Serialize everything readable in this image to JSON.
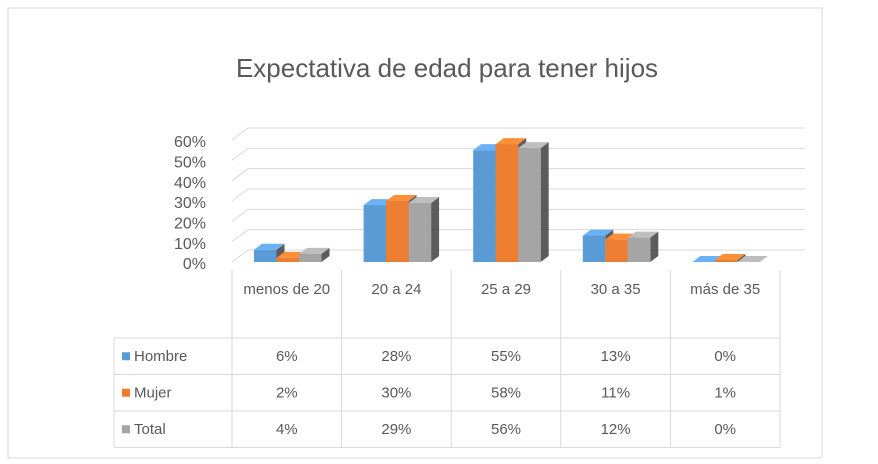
{
  "chart_data": {
    "type": "bar3d",
    "title": "Expectativa de edad para tener hijos",
    "categories": [
      "menos de 20",
      "20 a 24",
      "25 a 29",
      "30 a 35",
      "más de 35"
    ],
    "series": [
      {
        "name": "Hombre",
        "color": "#5b9bd5",
        "values": [
          6,
          28,
          55,
          13,
          0
        ],
        "value_labels": [
          "6%",
          "28%",
          "55%",
          "13%",
          "0%"
        ]
      },
      {
        "name": "Mujer",
        "color": "#ed7d31",
        "values": [
          2,
          30,
          58,
          11,
          1
        ],
        "value_labels": [
          "2%",
          "30%",
          "58%",
          "11%",
          "1%"
        ]
      },
      {
        "name": "Total",
        "color": "#a5a5a5",
        "values": [
          4,
          29,
          56,
          12,
          0
        ],
        "value_labels": [
          "4%",
          "29%",
          "56%",
          "12%",
          "0%"
        ]
      }
    ],
    "ylim": [
      0,
      60
    ],
    "yticks": [
      {
        "value": 0,
        "label": "0%"
      },
      {
        "value": 10,
        "label": "10%"
      },
      {
        "value": 20,
        "label": "20%"
      },
      {
        "value": 30,
        "label": "30%"
      },
      {
        "value": 40,
        "label": "40%"
      },
      {
        "value": 50,
        "label": "50%"
      },
      {
        "value": 60,
        "label": "60%"
      }
    ],
    "grid": true
  }
}
